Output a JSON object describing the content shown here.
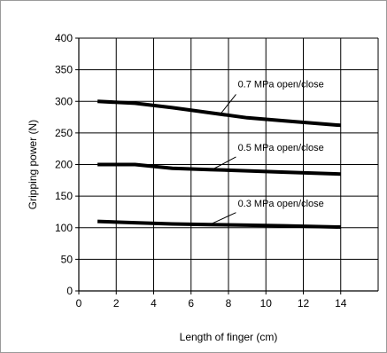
{
  "chart_data": {
    "type": "line",
    "title": "",
    "xlabel": "Length of finger (cm)",
    "ylabel": "Gripping power (N)",
    "xlim": [
      0,
      16
    ],
    "ylim": [
      0,
      400
    ],
    "x_ticks": [
      0,
      2,
      4,
      6,
      8,
      10,
      12,
      14
    ],
    "y_ticks": [
      0,
      50,
      100,
      150,
      200,
      250,
      300,
      350,
      400
    ],
    "grid": true,
    "legend": "none (series labels placed above each line)",
    "series_color": "#000000",
    "series": [
      {
        "name": "0.7 MPa open/close",
        "x": [
          1,
          3,
          5,
          7,
          9,
          11,
          14
        ],
        "y": [
          300,
          297,
          290,
          282,
          274,
          269,
          262
        ]
      },
      {
        "name": "0.5 MPa open/close",
        "x": [
          1,
          3,
          5,
          7,
          9,
          11,
          14
        ],
        "y": [
          200,
          200,
          194,
          192,
          190,
          188,
          185
        ]
      },
      {
        "name": "0.3 MPa open/close",
        "x": [
          1,
          3,
          5,
          7,
          9,
          11,
          14
        ],
        "y": [
          110,
          108,
          106,
          105,
          104,
          103,
          101
        ]
      }
    ]
  }
}
